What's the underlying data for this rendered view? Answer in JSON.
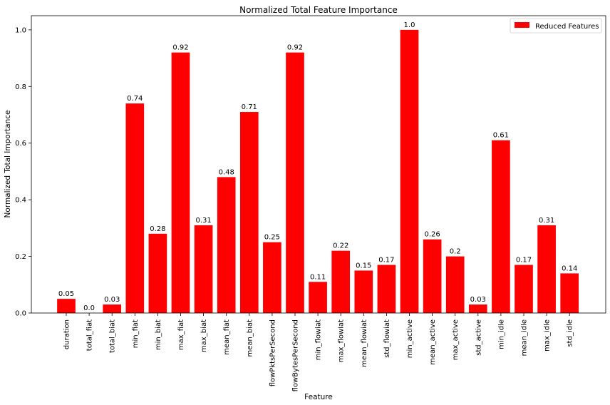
{
  "chart_data": {
    "type": "bar",
    "title": "Normalized Total Feature Importance",
    "xlabel": "Feature",
    "ylabel": "Normalized Total Importance",
    "ylim": [
      0,
      1.05
    ],
    "yticks": [
      "0.0",
      "0.2",
      "0.4",
      "0.6",
      "0.8",
      "1.0"
    ],
    "grid": false,
    "legend_position": "top-right",
    "bar_color": "#ff0000",
    "categories": [
      "duration",
      "total_fiat",
      "total_biat",
      "min_fiat",
      "min_biat",
      "max_fiat",
      "max_biat",
      "mean_fiat",
      "mean_biat",
      "flowPktsPerSecond",
      "flowBytesPerSecond",
      "min_flowiat",
      "max_flowiat",
      "mean_flowiat",
      "std_flowiat",
      "min_active",
      "mean_active",
      "max_active",
      "std_active",
      "min_idle",
      "mean_idle",
      "max_idle",
      "std_idle"
    ],
    "series": [
      {
        "name": "Reduced Features",
        "values": [
          0.05,
          0.0,
          0.03,
          0.74,
          0.28,
          0.92,
          0.31,
          0.48,
          0.71,
          0.25,
          0.92,
          0.11,
          0.22,
          0.15,
          0.17,
          1.0,
          0.26,
          0.2,
          0.03,
          0.61,
          0.17,
          0.31,
          0.14
        ],
        "labels": [
          "0.05",
          "0.0",
          "0.03",
          "0.74",
          "0.28",
          "0.92",
          "0.31",
          "0.48",
          "0.71",
          "0.25",
          "0.92",
          "0.11",
          "0.22",
          "0.15",
          "0.17",
          "1.0",
          "0.26",
          "0.2",
          "0.03",
          "0.61",
          "0.17",
          "0.31",
          "0.14"
        ]
      }
    ]
  }
}
